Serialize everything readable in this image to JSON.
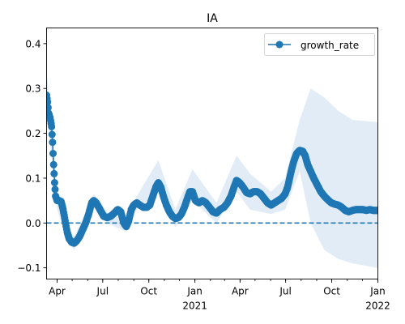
{
  "chart_data": {
    "type": "line",
    "title": "IA",
    "xlabel": "",
    "ylabel": "",
    "x_range": [
      "2020-03-11",
      "2022-01-01"
    ],
    "ylim": [
      -0.125,
      0.435
    ],
    "x_ticks": [
      {
        "date": "2020-04-01",
        "label": "Apr",
        "sublabel": ""
      },
      {
        "date": "2020-07-01",
        "label": "Jul",
        "sublabel": ""
      },
      {
        "date": "2020-10-01",
        "label": "Oct",
        "sublabel": ""
      },
      {
        "date": "2021-01-01",
        "label": "Jan",
        "sublabel": "2021"
      },
      {
        "date": "2021-04-01",
        "label": "Apr",
        "sublabel": ""
      },
      {
        "date": "2021-07-01",
        "label": "Jul",
        "sublabel": ""
      },
      {
        "date": "2021-10-01",
        "label": "Oct",
        "sublabel": ""
      },
      {
        "date": "2022-01-01",
        "label": "Jan",
        "sublabel": "2022"
      }
    ],
    "y_ticks": [
      -0.1,
      0.0,
      0.1,
      0.2,
      0.3,
      0.4
    ],
    "y_tick_labels": [
      "−0.1",
      "0.0",
      "0.1",
      "0.2",
      "0.3",
      "0.4"
    ],
    "grid": false,
    "legend": {
      "position": "top-right",
      "entries": [
        "growth_rate"
      ]
    },
    "colors": {
      "series": "#1f77b4",
      "band": "#dce9f5",
      "reference": "#1f77b4"
    },
    "reference_line": {
      "y": 0.0,
      "style": "dashed"
    },
    "series": [
      {
        "name": "growth_rate",
        "points": [
          [
            "2020-03-11",
            0.285
          ],
          [
            "2020-03-13",
            0.27
          ],
          [
            "2020-03-15",
            0.245
          ],
          [
            "2020-03-18",
            0.235
          ],
          [
            "2020-03-21",
            0.215
          ],
          [
            "2020-03-23",
            0.18
          ],
          [
            "2020-03-25",
            0.13
          ],
          [
            "2020-03-27",
            0.09
          ],
          [
            "2020-03-29",
            0.06
          ],
          [
            "2020-04-01",
            0.05
          ],
          [
            "2020-04-05",
            0.05
          ],
          [
            "2020-04-09",
            0.048
          ],
          [
            "2020-04-13",
            0.03
          ],
          [
            "2020-04-17",
            0.005
          ],
          [
            "2020-04-21",
            -0.02
          ],
          [
            "2020-04-25",
            -0.035
          ],
          [
            "2020-04-30",
            -0.043
          ],
          [
            "2020-05-05",
            -0.045
          ],
          [
            "2020-05-10",
            -0.04
          ],
          [
            "2020-05-16",
            -0.03
          ],
          [
            "2020-05-22",
            -0.015
          ],
          [
            "2020-05-28",
            0.0
          ],
          [
            "2020-06-03",
            0.02
          ],
          [
            "2020-06-09",
            0.045
          ],
          [
            "2020-06-13",
            0.05
          ],
          [
            "2020-06-18",
            0.045
          ],
          [
            "2020-06-23",
            0.035
          ],
          [
            "2020-06-28",
            0.025
          ],
          [
            "2020-07-03",
            0.015
          ],
          [
            "2020-07-10",
            0.012
          ],
          [
            "2020-07-17",
            0.015
          ],
          [
            "2020-07-24",
            0.022
          ],
          [
            "2020-07-31",
            0.03
          ],
          [
            "2020-08-06",
            0.025
          ],
          [
            "2020-08-12",
            0.0
          ],
          [
            "2020-08-17",
            -0.008
          ],
          [
            "2020-08-22",
            0.005
          ],
          [
            "2020-08-27",
            0.03
          ],
          [
            "2020-09-01",
            0.04
          ],
          [
            "2020-09-07",
            0.045
          ],
          [
            "2020-09-13",
            0.04
          ],
          [
            "2020-09-20",
            0.035
          ],
          [
            "2020-09-27",
            0.035
          ],
          [
            "2020-10-03",
            0.04
          ],
          [
            "2020-10-09",
            0.06
          ],
          [
            "2020-10-15",
            0.08
          ],
          [
            "2020-10-20",
            0.09
          ],
          [
            "2020-10-25",
            0.08
          ],
          [
            "2020-10-30",
            0.06
          ],
          [
            "2020-11-05",
            0.04
          ],
          [
            "2020-11-11",
            0.025
          ],
          [
            "2020-11-17",
            0.015
          ],
          [
            "2020-11-23",
            0.01
          ],
          [
            "2020-11-29",
            0.012
          ],
          [
            "2020-12-05",
            0.02
          ],
          [
            "2020-12-11",
            0.035
          ],
          [
            "2020-12-17",
            0.055
          ],
          [
            "2020-12-22",
            0.07
          ],
          [
            "2020-12-27",
            0.07
          ],
          [
            "2021-01-02",
            0.05
          ],
          [
            "2021-01-09",
            0.045
          ],
          [
            "2021-01-16",
            0.05
          ],
          [
            "2021-01-23",
            0.045
          ],
          [
            "2021-01-30",
            0.035
          ],
          [
            "2021-02-06",
            0.025
          ],
          [
            "2021-02-13",
            0.022
          ],
          [
            "2021-02-20",
            0.03
          ],
          [
            "2021-02-28",
            0.035
          ],
          [
            "2021-03-07",
            0.045
          ],
          [
            "2021-03-14",
            0.06
          ],
          [
            "2021-03-20",
            0.08
          ],
          [
            "2021-03-25",
            0.095
          ],
          [
            "2021-03-31",
            0.09
          ],
          [
            "2021-04-07",
            0.08
          ],
          [
            "2021-04-14",
            0.068
          ],
          [
            "2021-04-21",
            0.065
          ],
          [
            "2021-04-28",
            0.07
          ],
          [
            "2021-05-05",
            0.07
          ],
          [
            "2021-05-12",
            0.065
          ],
          [
            "2021-05-19",
            0.055
          ],
          [
            "2021-05-26",
            0.045
          ],
          [
            "2021-06-02",
            0.04
          ],
          [
            "2021-06-09",
            0.045
          ],
          [
            "2021-06-16",
            0.05
          ],
          [
            "2021-06-23",
            0.055
          ],
          [
            "2021-06-30",
            0.065
          ],
          [
            "2021-07-05",
            0.08
          ],
          [
            "2021-07-09",
            0.1
          ],
          [
            "2021-07-13",
            0.12
          ],
          [
            "2021-07-18",
            0.14
          ],
          [
            "2021-07-23",
            0.155
          ],
          [
            "2021-07-29",
            0.162
          ],
          [
            "2021-08-04",
            0.16
          ],
          [
            "2021-08-09",
            0.15
          ],
          [
            "2021-08-14",
            0.13
          ],
          [
            "2021-08-20",
            0.115
          ],
          [
            "2021-08-26",
            0.1
          ],
          [
            "2021-09-02",
            0.085
          ],
          [
            "2021-09-09",
            0.07
          ],
          [
            "2021-09-16",
            0.06
          ],
          [
            "2021-09-23",
            0.052
          ],
          [
            "2021-09-30",
            0.045
          ],
          [
            "2021-10-07",
            0.042
          ],
          [
            "2021-10-14",
            0.04
          ],
          [
            "2021-10-21",
            0.035
          ],
          [
            "2021-10-28",
            0.028
          ],
          [
            "2021-11-04",
            0.025
          ],
          [
            "2021-11-11",
            0.028
          ],
          [
            "2021-11-18",
            0.03
          ],
          [
            "2021-11-25",
            0.03
          ],
          [
            "2021-12-02",
            0.03
          ],
          [
            "2021-12-09",
            0.028
          ],
          [
            "2021-12-16",
            0.03
          ],
          [
            "2021-12-23",
            0.028
          ],
          [
            "2021-12-31",
            0.028
          ]
        ],
        "band": [
          [
            "2020-03-11",
            0.25,
            0.34
          ],
          [
            "2020-03-25",
            0.1,
            0.16
          ],
          [
            "2020-04-01",
            0.03,
            0.075
          ],
          [
            "2020-04-20",
            -0.035,
            0.0
          ],
          [
            "2020-05-05",
            -0.06,
            -0.03
          ],
          [
            "2020-05-25",
            -0.025,
            0.015
          ],
          [
            "2020-06-13",
            0.035,
            0.065
          ],
          [
            "2020-07-10",
            0.0,
            0.025
          ],
          [
            "2020-08-17",
            -0.02,
            0.005
          ],
          [
            "2020-09-07",
            0.03,
            0.06
          ],
          [
            "2020-10-20",
            0.07,
            0.14
          ],
          [
            "2020-11-23",
            -0.01,
            0.03
          ],
          [
            "2020-12-27",
            0.05,
            0.12
          ],
          [
            "2021-02-13",
            0.0,
            0.045
          ],
          [
            "2021-03-25",
            0.07,
            0.15
          ],
          [
            "2021-04-21",
            0.03,
            0.11
          ],
          [
            "2021-06-02",
            0.02,
            0.07
          ],
          [
            "2021-06-30",
            0.03,
            0.1
          ],
          [
            "2021-07-29",
            0.115,
            0.23
          ],
          [
            "2021-08-20",
            0.0,
            0.3
          ],
          [
            "2021-09-16",
            -0.06,
            0.28
          ],
          [
            "2021-10-14",
            -0.08,
            0.25
          ],
          [
            "2021-11-11",
            -0.09,
            0.23
          ],
          [
            "2021-12-31",
            -0.1,
            0.225
          ]
        ]
      }
    ]
  }
}
